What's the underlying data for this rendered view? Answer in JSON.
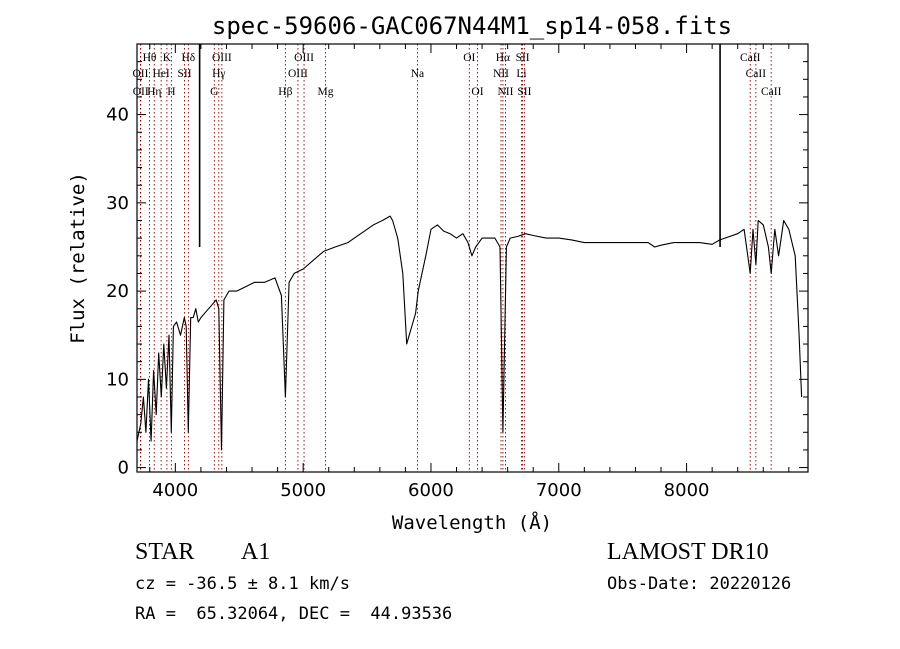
{
  "chart_data": {
    "type": "line",
    "title": "spec-59606-GAC067N44M1_sp14-058.fits",
    "xlabel": "Wavelength (Å)",
    "ylabel": "Flux (relative)",
    "xlim": [
      3700,
      8950
    ],
    "ylim": [
      -0.5,
      48
    ],
    "x_ticks": [
      4000,
      5000,
      6000,
      7000,
      8000
    ],
    "y_ticks": [
      0,
      10,
      20,
      30,
      40
    ],
    "grid": false,
    "line_color": "#000000",
    "marker_color": "#8b0000",
    "series": [
      {
        "x": [
          3700,
          3730,
          3750,
          3770,
          3790,
          3810,
          3830,
          3850,
          3870,
          3890,
          3910,
          3930,
          3950,
          3968,
          3985,
          4010,
          4040,
          4070,
          4085,
          4101,
          4120,
          4140,
          4160,
          4180,
          4200,
          4230,
          4260,
          4290,
          4320,
          4340,
          4361,
          4380,
          4420,
          4480,
          4550,
          4620,
          4700,
          4780,
          4830,
          4861,
          4890,
          4930,
          5000,
          5080,
          5160,
          5250,
          5350,
          5450,
          5550,
          5620,
          5680,
          5700,
          5740,
          5780,
          5810,
          5830,
          5850,
          5880,
          5900,
          5930,
          5960,
          6000,
          6050,
          6100,
          6150,
          6200,
          6250,
          6290,
          6320,
          6350,
          6400,
          6450,
          6500,
          6540,
          6563,
          6590,
          6620,
          6680,
          6740,
          6800,
          6900,
          7000,
          7100,
          7200,
          7300,
          7400,
          7500,
          7600,
          7700,
          7750,
          7800,
          7900,
          8000,
          8100,
          8200,
          8260,
          8300,
          8400,
          8450,
          8498,
          8520,
          8542,
          8560,
          8600,
          8640,
          8662,
          8690,
          8720,
          8760,
          8800,
          8850,
          8880,
          8900
        ],
        "y": [
          3,
          5,
          8,
          4,
          10,
          3,
          11,
          6,
          13,
          8,
          14,
          9,
          15,
          4,
          16,
          16.5,
          15,
          17,
          16,
          4,
          17,
          17,
          18,
          16.5,
          17,
          17.5,
          18,
          18.5,
          19,
          18,
          2,
          19,
          20,
          20,
          20.5,
          21,
          21,
          21.5,
          19.5,
          8,
          21,
          22,
          22.5,
          23.5,
          24.5,
          25,
          25.5,
          26.5,
          27.5,
          28,
          28.5,
          28,
          26,
          22,
          14,
          15,
          16,
          17.5,
          20,
          22,
          24,
          27,
          27.5,
          26.8,
          26.5,
          26,
          26.5,
          25.5,
          24,
          25,
          26,
          26,
          26,
          25,
          4,
          25,
          26,
          26.2,
          26.5,
          26.3,
          26,
          26,
          25.8,
          25.5,
          25.5,
          25.5,
          25.5,
          25.5,
          25.5,
          25,
          25.2,
          25.5,
          25.5,
          25.5,
          25.3,
          25.8,
          26,
          26.5,
          27,
          22,
          27,
          23,
          28,
          27.5,
          25,
          22,
          27,
          24,
          28,
          27,
          24,
          15,
          8
        ]
      }
    ],
    "spikes": [
      {
        "x": 4190,
        "y": 48
      },
      {
        "x": 8262,
        "y": 48
      }
    ],
    "lines": [
      {
        "label": "OII",
        "x": 3727,
        "row": 2
      },
      {
        "label": "OII",
        "x": 3729,
        "row": 3
      },
      {
        "label": "Hθ",
        "x": 3798,
        "row": 1
      },
      {
        "label": "Hη",
        "x": 3835,
        "row": 3
      },
      {
        "label": "HeI",
        "x": 3889,
        "row": 2
      },
      {
        "label": "K",
        "x": 3934,
        "row": 1
      },
      {
        "label": "SII",
        "x": 4072,
        "row": 2
      },
      {
        "label": "H",
        "x": 3969,
        "row": 3
      },
      {
        "label": "Hδ",
        "x": 4102,
        "row": 1
      },
      {
        "label": "Hγ",
        "x": 4340,
        "row": 2
      },
      {
        "label": "G",
        "x": 4305,
        "row": 3
      },
      {
        "label": "OIII",
        "x": 4364,
        "row": 1
      },
      {
        "label": "Hβ",
        "x": 4861,
        "row": 3
      },
      {
        "label": "OIII",
        "x": 4959,
        "row": 2
      },
      {
        "label": "OIII",
        "x": 5007,
        "row": 1
      },
      {
        "label": "Mg",
        "x": 5175,
        "row": 3
      },
      {
        "label": "Na",
        "x": 5894,
        "row": 2
      },
      {
        "label": "OI",
        "x": 6300,
        "row": 1
      },
      {
        "label": "OI",
        "x": 6364,
        "row": 3
      },
      {
        "label": "NII",
        "x": 6548,
        "row": 2
      },
      {
        "label": "NII",
        "x": 6583,
        "row": 3
      },
      {
        "label": "Hα",
        "x": 6563,
        "row": 1
      },
      {
        "label": "SII",
        "x": 6717,
        "row": 1
      },
      {
        "label": "Li",
        "x": 6708,
        "row": 2
      },
      {
        "label": "SII",
        "x": 6731,
        "row": 3
      },
      {
        "label": "CaII",
        "x": 8498,
        "row": 1
      },
      {
        "label": "CaII",
        "x": 8542,
        "row": 2
      },
      {
        "label": "CaII",
        "x": 8662,
        "row": 3
      }
    ]
  },
  "info": {
    "object_class": "STAR",
    "subclass": "A1",
    "survey": "LAMOST DR10",
    "redshift": "cz = -36.5 ± 8.1 km/s",
    "obs_date": "Obs-Date: 20220126",
    "coords": "RA =  65.32064, DEC =  44.93536"
  }
}
